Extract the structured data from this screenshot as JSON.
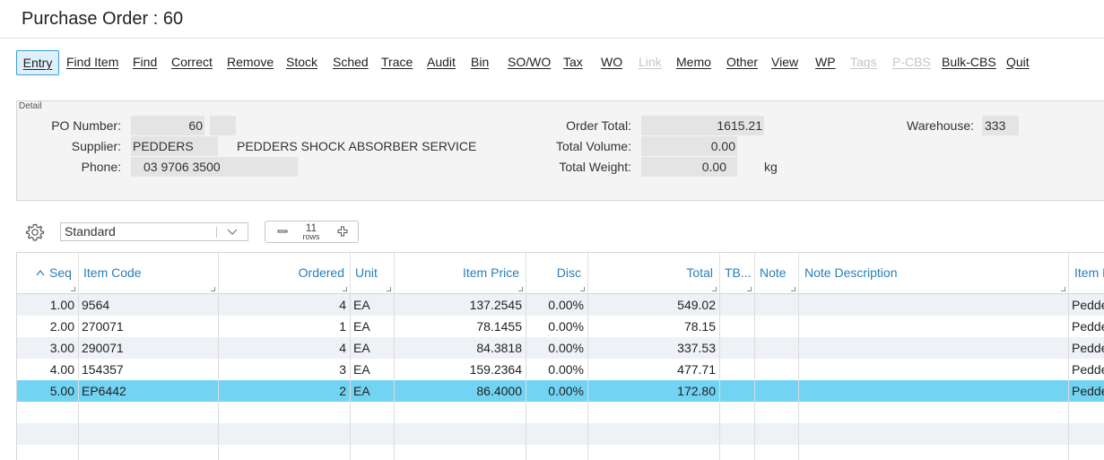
{
  "window": {
    "title": "Purchase Order : 60"
  },
  "toolbar": {
    "buttons": [
      {
        "label": "Entry",
        "state": "active"
      },
      {
        "label": "Find Item",
        "state": "normal"
      },
      {
        "label": "Find",
        "state": "normal"
      },
      {
        "label": "Correct",
        "state": "normal"
      },
      {
        "label": "Remove",
        "state": "normal"
      },
      {
        "label": "Stock",
        "state": "normal"
      },
      {
        "label": "Sched",
        "state": "normal"
      },
      {
        "label": "Trace",
        "state": "normal"
      },
      {
        "label": "Audit",
        "state": "normal"
      },
      {
        "label": "Bin",
        "state": "normal"
      },
      {
        "label": "SO/WO",
        "state": "normal"
      },
      {
        "label": "Tax",
        "state": "normal"
      },
      {
        "label": "WO",
        "state": "normal"
      },
      {
        "label": "Link",
        "state": "disabled"
      },
      {
        "label": "Memo",
        "state": "normal"
      },
      {
        "label": "Other",
        "state": "normal"
      },
      {
        "label": "View",
        "state": "normal"
      },
      {
        "label": "WP",
        "state": "normal"
      },
      {
        "label": "Tags",
        "state": "disabled"
      },
      {
        "label": "P-CBS",
        "state": "disabled"
      },
      {
        "label": "Bulk-CBS",
        "state": "normal"
      },
      {
        "label": "Quit",
        "state": "normal"
      }
    ]
  },
  "detail": {
    "caption": "Detail",
    "po_number_label": "PO Number:",
    "po_number": "60",
    "supplier_label": "Supplier:",
    "supplier_code": "PEDDERS",
    "supplier_name": "PEDDERS SHOCK ABSORBER SERVICE",
    "phone_label": "Phone:",
    "phone": "03 9706 3500",
    "order_total_label": "Order Total:",
    "order_total": "1615.21",
    "total_volume_label": "Total Volume:",
    "total_volume": "0.00",
    "total_weight_label": "Total Weight:",
    "total_weight": "0.00",
    "weight_unit": "kg",
    "warehouse_label": "Warehouse:",
    "warehouse": "333"
  },
  "grid_controls": {
    "view_selected": "Standard",
    "row_count": "11",
    "row_unit": "rows"
  },
  "grid": {
    "columns": [
      "Seq",
      "Item Code",
      "Ordered",
      "Unit",
      "Item Price",
      "Disc",
      "Total",
      "TB...",
      "Note",
      "Note Description",
      "Item D"
    ],
    "rows": [
      {
        "seq": "1.00",
        "item_code": "9564",
        "ordered": "4",
        "unit": "EA",
        "price": "137.2545",
        "disc": "0.00%",
        "total": "549.02",
        "tb": "",
        "note": "",
        "note_desc": "",
        "item_desc": "Pedders"
      },
      {
        "seq": "2.00",
        "item_code": "270071",
        "ordered": "1",
        "unit": "EA",
        "price": "78.1455",
        "disc": "0.00%",
        "total": "78.15",
        "tb": "",
        "note": "",
        "note_desc": "",
        "item_desc": "Pedders"
      },
      {
        "seq": "3.00",
        "item_code": "290071",
        "ordered": "4",
        "unit": "EA",
        "price": "84.3818",
        "disc": "0.00%",
        "total": "337.53",
        "tb": "",
        "note": "",
        "note_desc": "",
        "item_desc": "Pedders"
      },
      {
        "seq": "4.00",
        "item_code": "154357",
        "ordered": "3",
        "unit": "EA",
        "price": "159.2364",
        "disc": "0.00%",
        "total": "477.71",
        "tb": "",
        "note": "",
        "note_desc": "",
        "item_desc": "Pedders"
      },
      {
        "seq": "5.00",
        "item_code": "EP6442",
        "ordered": "2",
        "unit": "EA",
        "price": "86.4000",
        "disc": "0.00%",
        "total": "172.80",
        "tb": "",
        "note": "",
        "note_desc": "",
        "item_desc": "Pedders",
        "selected": true
      }
    ]
  },
  "colors": {
    "accent": "#2a7fb8",
    "selected_row": "#72d4f2",
    "active_button_bg": "#dff0fb"
  }
}
